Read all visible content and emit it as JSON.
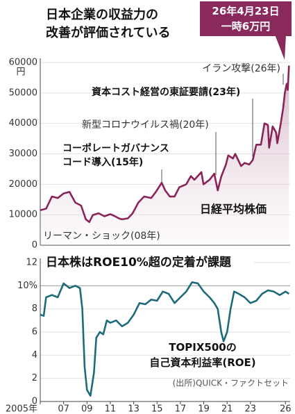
{
  "chart_data": [
    {
      "type": "line",
      "title": "日本企業の収益力の\n改善が評価されている",
      "callout": "26年4月23日\n一時6万円",
      "ylabel": "円",
      "annotations": [
        "イラン攻撃(26年)",
        "資本コスト経営の東証要請(23年)",
        "新型コロナウイルス禍(20年)",
        "コーポレートガバナンス\nコード導入(15年)",
        "リーマン・ショック(08年)"
      ],
      "x": [
        2005.0,
        2005.5,
        2006.0,
        2006.5,
        2007.0,
        2007.5,
        2008.0,
        2008.5,
        2008.9,
        2009.2,
        2009.5,
        2010.0,
        2010.5,
        2011.0,
        2011.3,
        2011.8,
        2012.0,
        2012.5,
        2012.9,
        2013.4,
        2013.9,
        2014.5,
        2014.9,
        2015.4,
        2015.7,
        2016.1,
        2016.5,
        2016.9,
        2017.5,
        2017.9,
        2018.2,
        2018.8,
        2018.98,
        2019.5,
        2019.9,
        2020.2,
        2020.5,
        2020.9,
        2021.1,
        2021.5,
        2021.7,
        2022.2,
        2022.5,
        2022.9,
        2023.2,
        2023.5,
        2023.9,
        2024.2,
        2024.5,
        2024.6,
        2024.9,
        2025.2,
        2025.3,
        2025.6,
        2025.8,
        2025.95,
        2026.1,
        2026.2,
        2026.3
      ],
      "series": [
        {
          "name": "日経平均株価",
          "color": "#8a2358",
          "values": [
            11500,
            12000,
            16000,
            15500,
            17000,
            17500,
            14000,
            13000,
            8500,
            7600,
            9900,
            10500,
            9500,
            10200,
            9700,
            8700,
            8500,
            8800,
            10400,
            14000,
            16000,
            15500,
            17500,
            20500,
            18000,
            16000,
            16000,
            19000,
            20000,
            22700,
            21500,
            24000,
            20000,
            21500,
            23500,
            18000,
            22500,
            26500,
            29500,
            28500,
            30000,
            26000,
            27000,
            26500,
            28000,
            33000,
            33000,
            40000,
            39500,
            32000,
            39000,
            37000,
            33500,
            40000,
            45000,
            50000,
            53000,
            51000,
            59000
          ]
        }
      ],
      "xlim": [
        2005,
        2026.4
      ],
      "ylim": [
        0,
        60000
      ],
      "yticks": [
        0,
        10000,
        20000,
        30000,
        40000,
        50000,
        60000
      ],
      "grid": true
    },
    {
      "type": "line",
      "title": "日本株はROE10%超の定着が課題",
      "source": "(出所)QUICK・ファクトセット",
      "x": [
        2005.0,
        2005.3,
        2005.5,
        2006.0,
        2006.5,
        2007.0,
        2007.5,
        2008.0,
        2008.4,
        2008.6,
        2008.8,
        2009.0,
        2009.3,
        2009.6,
        2009.8,
        2010.1,
        2010.4,
        2010.7,
        2011.0,
        2011.5,
        2012.0,
        2012.5,
        2013.0,
        2013.5,
        2014.0,
        2014.5,
        2015.0,
        2015.5,
        2016.0,
        2016.5,
        2017.0,
        2017.5,
        2018.0,
        2018.5,
        2019.0,
        2019.5,
        2019.9,
        2020.2,
        2020.5,
        2020.7,
        2021.0,
        2021.3,
        2021.6,
        2022.0,
        2022.5,
        2023.0,
        2023.5,
        2024.0,
        2024.5,
        2025.0,
        2025.5,
        2026.0,
        2026.3
      ],
      "series": [
        {
          "name": "TOPIX500の\n自己資本利益率(ROE)",
          "color": "#1d6b78",
          "values": [
            7.5,
            7.4,
            9.0,
            9.2,
            9.0,
            10.2,
            9.8,
            10.0,
            9.8,
            8.0,
            3.0,
            1.0,
            0.5,
            2.5,
            5.5,
            6.0,
            5.8,
            7.0,
            6.8,
            7.0,
            6.5,
            6.8,
            7.5,
            8.5,
            8.4,
            8.8,
            8.7,
            9.5,
            9.3,
            8.5,
            9.0,
            9.5,
            10.3,
            10.2,
            9.5,
            9.0,
            8.5,
            8.0,
            6.0,
            5.2,
            6.0,
            8.0,
            9.5,
            9.3,
            9.0,
            8.5,
            8.7,
            9.3,
            9.6,
            9.5,
            9.2,
            9.5,
            9.3
          ]
        }
      ],
      "xlim": [
        2005,
        2026.4
      ],
      "ylim": [
        0,
        12
      ],
      "yticks": [
        0,
        2,
        4,
        6,
        8,
        {
          "value": 10,
          "label": "10%"
        },
        12
      ],
      "xticks": [
        {
          "value": 2005,
          "label": "2005年"
        },
        {
          "value": 2007,
          "label": "07"
        },
        {
          "value": 2009,
          "label": "09"
        },
        {
          "value": 2011,
          "label": "11"
        },
        {
          "value": 2013,
          "label": "13"
        },
        {
          "value": 2015,
          "label": "15"
        },
        {
          "value": 2017,
          "label": "17"
        },
        {
          "value": 2019,
          "label": "19"
        },
        {
          "value": 2021,
          "label": "21"
        },
        {
          "value": 2023,
          "label": "23"
        },
        {
          "value": 2026,
          "label": "26"
        }
      ],
      "grid": true
    }
  ]
}
